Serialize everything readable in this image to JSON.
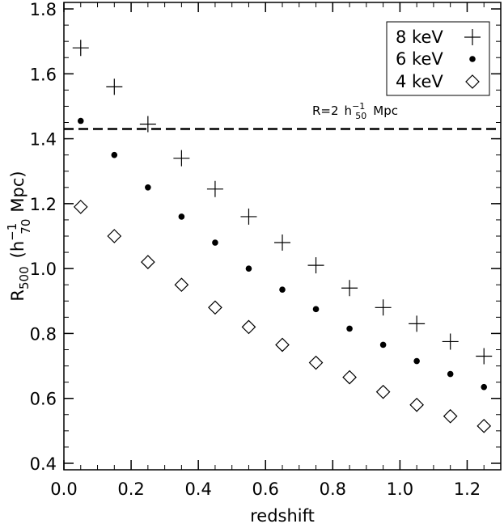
{
  "chart_data": {
    "type": "scatter",
    "xlabel": "redshift",
    "ylabel": {
      "main": "R",
      "main_sub": "500",
      "paren_open": "(",
      "unit_h": "h",
      "unit_h_sup": "−1",
      "unit_h_sub": "70",
      "unit_rest": "Mpc)"
    },
    "xlim": [
      0.0,
      1.3
    ],
    "ylim": [
      0.38,
      1.82
    ],
    "xticks": [
      "0.0",
      "0.2",
      "0.4",
      "0.6",
      "0.8",
      "1.0",
      "1.2"
    ],
    "yticks": [
      "0.4",
      "0.6",
      "0.8",
      "1.0",
      "1.2",
      "1.4",
      "1.6",
      "1.8"
    ],
    "x": [
      0.05,
      0.15,
      0.25,
      0.35,
      0.45,
      0.55,
      0.65,
      0.75,
      0.85,
      0.95,
      1.05,
      1.15,
      1.25
    ],
    "series": [
      {
        "name": "8 keV",
        "marker": "plus",
        "values": [
          1.68,
          1.56,
          1.445,
          1.34,
          1.245,
          1.16,
          1.08,
          1.01,
          0.94,
          0.88,
          0.83,
          0.775,
          0.73
        ]
      },
      {
        "name": "6 keV",
        "marker": "dot",
        "values": [
          1.455,
          1.35,
          1.25,
          1.16,
          1.08,
          1.0,
          0.935,
          0.875,
          0.815,
          0.765,
          0.715,
          0.675,
          0.635
        ]
      },
      {
        "name": "4 keV",
        "marker": "diamond",
        "values": [
          1.19,
          1.1,
          1.02,
          0.95,
          0.88,
          0.82,
          0.765,
          0.71,
          0.665,
          0.62,
          0.58,
          0.545,
          0.515
        ]
      }
    ],
    "reference_line": {
      "y": 1.43,
      "style": "dashed",
      "label": {
        "main": "R=2",
        "h": "h",
        "h_sup": "−1",
        "h_sub": "50",
        "rest": "Mpc"
      }
    },
    "legend": "top-right",
    "grid": false
  }
}
